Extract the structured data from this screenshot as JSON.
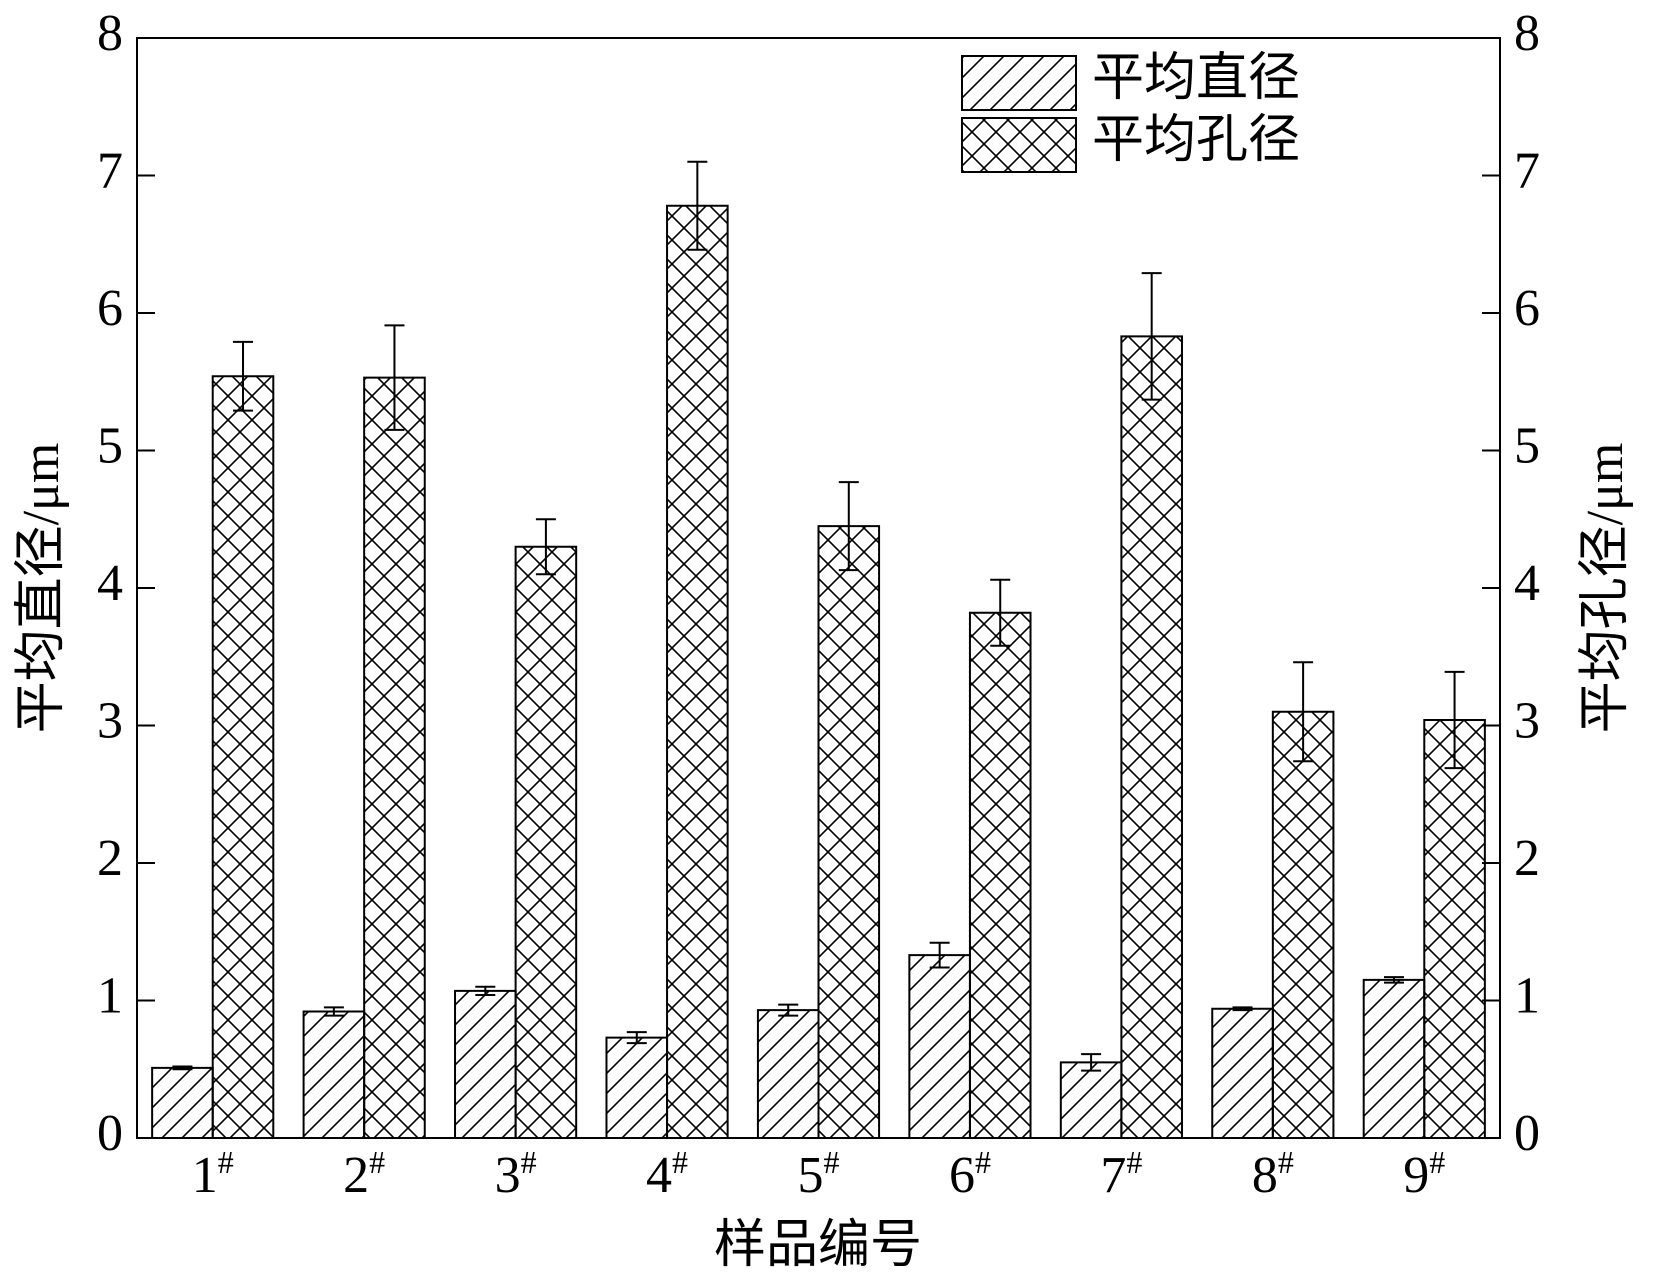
{
  "chart_data": {
    "type": "bar",
    "x_label": "样品编号",
    "y_label": "平均直径/μm",
    "y2_label": "平均孔径/μm",
    "categories": [
      "1#",
      "2#",
      "3#",
      "4#",
      "5#",
      "6#",
      "7#",
      "8#",
      "9#"
    ],
    "series": [
      {
        "name": "平均直径",
        "color": "#000000",
        "hatch": "diagonal",
        "values": [
          0.51,
          0.92,
          1.07,
          0.73,
          0.93,
          1.33,
          0.55,
          0.94,
          1.15
        ],
        "errors": [
          0.01,
          0.03,
          0.03,
          0.04,
          0.04,
          0.09,
          0.06,
          0.01,
          0.02
        ]
      },
      {
        "name": "平均孔径",
        "color": "#000000",
        "hatch": "crosshatch",
        "axis": "y2",
        "values": [
          5.54,
          5.53,
          4.3,
          6.78,
          4.45,
          3.82,
          5.83,
          3.1,
          3.04
        ],
        "errors": [
          0.25,
          0.38,
          0.2,
          0.32,
          0.32,
          0.24,
          0.46,
          0.36,
          0.35
        ]
      }
    ],
    "ylim": [
      0,
      8
    ],
    "yticks": [
      0,
      1,
      2,
      3,
      4,
      5,
      6,
      7,
      8
    ],
    "y2lim": [
      0,
      8
    ],
    "y2ticks": [
      0,
      1,
      2,
      3,
      4,
      5,
      6,
      7,
      8
    ],
    "grid": false,
    "legend": "top-right"
  }
}
